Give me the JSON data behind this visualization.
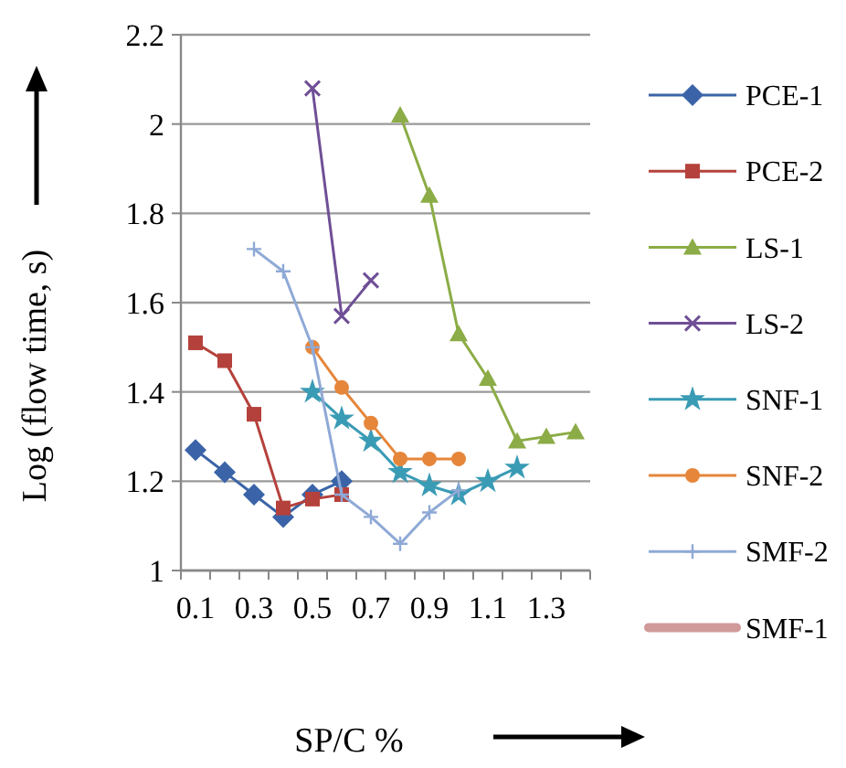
{
  "chart_data": {
    "type": "line",
    "xlabel": "SP/C %",
    "ylabel": "Log (flow time, s)",
    "categories": [
      "0.1",
      null,
      "0.3",
      null,
      "0.5",
      null,
      "0.7",
      null,
      "0.9",
      null,
      "1.1",
      null,
      "1.3",
      null
    ],
    "ylim": [
      1,
      2.2
    ],
    "yticks": [
      1,
      1.2,
      1.4,
      1.6,
      1.8,
      2,
      2.2
    ],
    "grid": "y",
    "legend": "right",
    "series": [
      {
        "name": "PCE-1",
        "color": "#3b64a8",
        "marker": "diamond",
        "values": [
          1.27,
          1.22,
          1.17,
          1.12,
          1.17,
          1.2,
          null,
          null,
          null,
          null,
          null,
          null,
          null,
          null
        ]
      },
      {
        "name": "PCE-2",
        "color": "#b5413c",
        "marker": "square",
        "values": [
          1.51,
          1.47,
          1.35,
          1.14,
          1.16,
          1.17,
          null,
          null,
          null,
          null,
          null,
          null,
          null,
          null
        ]
      },
      {
        "name": "LS-1",
        "color": "#8bac46",
        "marker": "triangle",
        "values": [
          null,
          null,
          null,
          null,
          null,
          null,
          null,
          2.02,
          1.84,
          1.53,
          1.43,
          1.29,
          1.3,
          1.31
        ]
      },
      {
        "name": "LS-2",
        "color": "#6f4f96",
        "marker": "cross",
        "values": [
          null,
          null,
          null,
          null,
          2.08,
          1.57,
          1.65,
          null,
          null,
          null,
          null,
          null,
          null,
          null
        ]
      },
      {
        "name": "SNF-1",
        "color": "#3a9bb5",
        "marker": "star",
        "values": [
          null,
          null,
          null,
          null,
          1.4,
          1.34,
          1.29,
          1.22,
          1.19,
          1.17,
          1.2,
          1.23,
          null,
          null
        ]
      },
      {
        "name": "SNF-2",
        "color": "#e6863a",
        "marker": "circle",
        "values": [
          null,
          null,
          null,
          null,
          1.5,
          1.41,
          1.33,
          1.25,
          1.25,
          1.25,
          null,
          null,
          null,
          null
        ]
      },
      {
        "name": "SMF-2",
        "color": "#8fa9d6",
        "marker": "plus",
        "values": [
          null,
          null,
          1.72,
          1.67,
          1.5,
          1.17,
          1.12,
          1.06,
          1.13,
          1.18,
          null,
          null,
          null,
          null
        ]
      },
      {
        "name": "SMF-1",
        "color": "#d19a9a",
        "marker": "none",
        "values": [
          null,
          null,
          null,
          null,
          null,
          null,
          null,
          null,
          null,
          null,
          null,
          null,
          null,
          null
        ]
      }
    ]
  }
}
